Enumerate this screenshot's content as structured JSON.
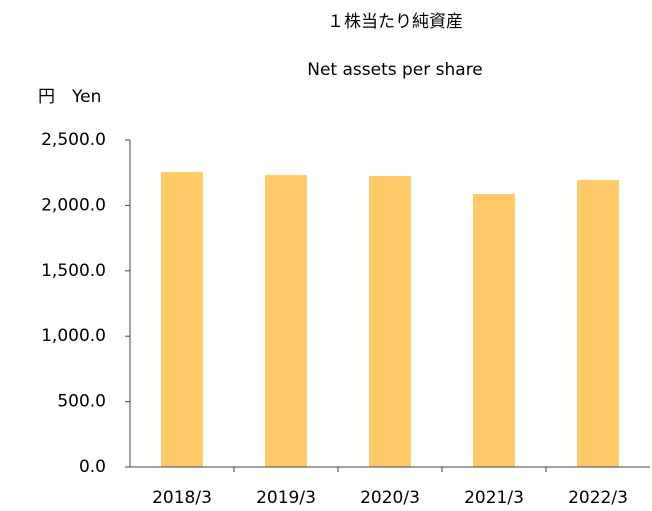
{
  "chart_data": {
    "type": "bar",
    "title": "１株当たり純資産",
    "subtitle": "Net assets per share",
    "y_axis_label": "円　Yen",
    "categories": [
      "2018/3",
      "2019/3",
      "2020/3",
      "2021/3",
      "2022/3"
    ],
    "values": [
      2255,
      2232,
      2225,
      2087,
      2194
    ],
    "color": "#ffcb69",
    "ylim": [
      0,
      2500
    ],
    "yticks": [
      {
        "value": 0,
        "label": "0.0"
      },
      {
        "value": 500,
        "label": "500.0"
      },
      {
        "value": 1000,
        "label": "1,000.0"
      },
      {
        "value": 1500,
        "label": "1,500.0"
      },
      {
        "value": 2000,
        "label": "2,000.0"
      },
      {
        "value": 2500,
        "label": "2,500.0"
      }
    ],
    "grid": false
  }
}
